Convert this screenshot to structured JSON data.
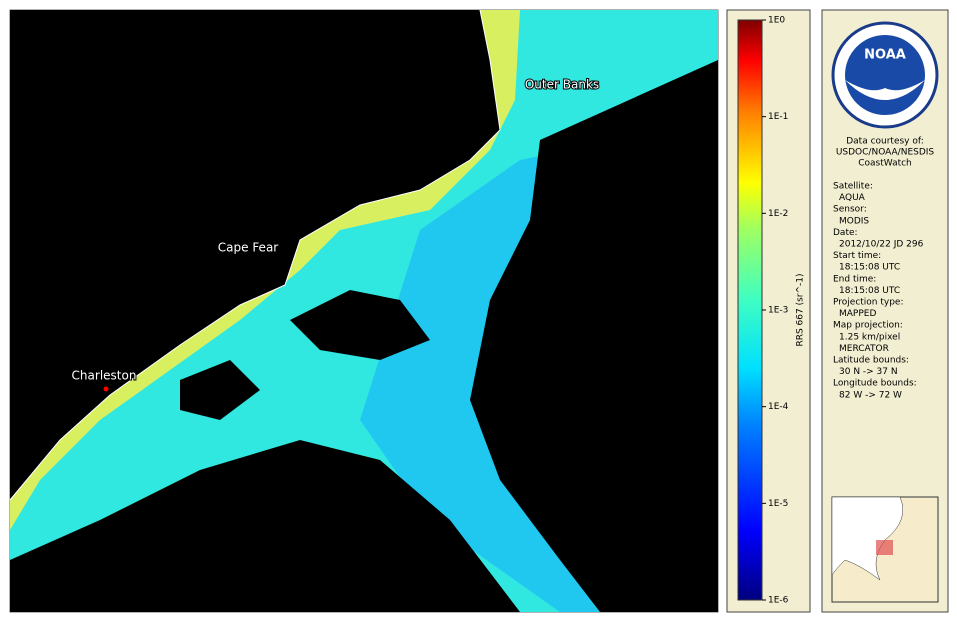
{
  "map": {
    "labels": [
      "Outer Banks",
      "Cape Fear",
      "Charleston"
    ]
  },
  "colorbar": {
    "title": "RRS 667 (sr^-1)",
    "scale": "log",
    "lim": [
      1e-06,
      1
    ],
    "ticks": [
      {
        "value": 1,
        "label": "1E0"
      },
      {
        "value": 0.1,
        "label": "1E-1"
      },
      {
        "value": 0.01,
        "label": "1E-2"
      },
      {
        "value": 0.001,
        "label": "1E-3"
      },
      {
        "value": 0.0001,
        "label": "1E-4"
      },
      {
        "value": 1e-05,
        "label": "1E-5"
      },
      {
        "value": 1e-06,
        "label": "1E-6"
      }
    ]
  },
  "logo": {
    "name": "NOAA"
  },
  "info": {
    "credit": [
      "Data courtesy of:",
      "USDOC/NOAA/NESDIS",
      "CoastWatch"
    ],
    "fields": [
      {
        "label": "Satellite:",
        "lines": [
          "AQUA"
        ]
      },
      {
        "label": "Sensor:",
        "lines": [
          "MODIS"
        ]
      },
      {
        "label": "Date:",
        "lines": [
          "2012/10/22 JD 296"
        ]
      },
      {
        "label": "Start time:",
        "lines": [
          "18:15:08 UTC"
        ]
      },
      {
        "label": "End time:",
        "lines": [
          "18:15:08 UTC"
        ]
      },
      {
        "label": "Projection type:",
        "lines": [
          "MAPPED"
        ]
      },
      {
        "label": "Map projection:",
        "lines": [
          "1.25 km/pixel",
          "MERCATOR"
        ]
      },
      {
        "label": "Latitude bounds:",
        "lines": [
          "30 N -> 37 N"
        ]
      },
      {
        "label": "Longitude bounds:",
        "lines": [
          "82 W -> 72 W"
        ]
      }
    ]
  }
}
